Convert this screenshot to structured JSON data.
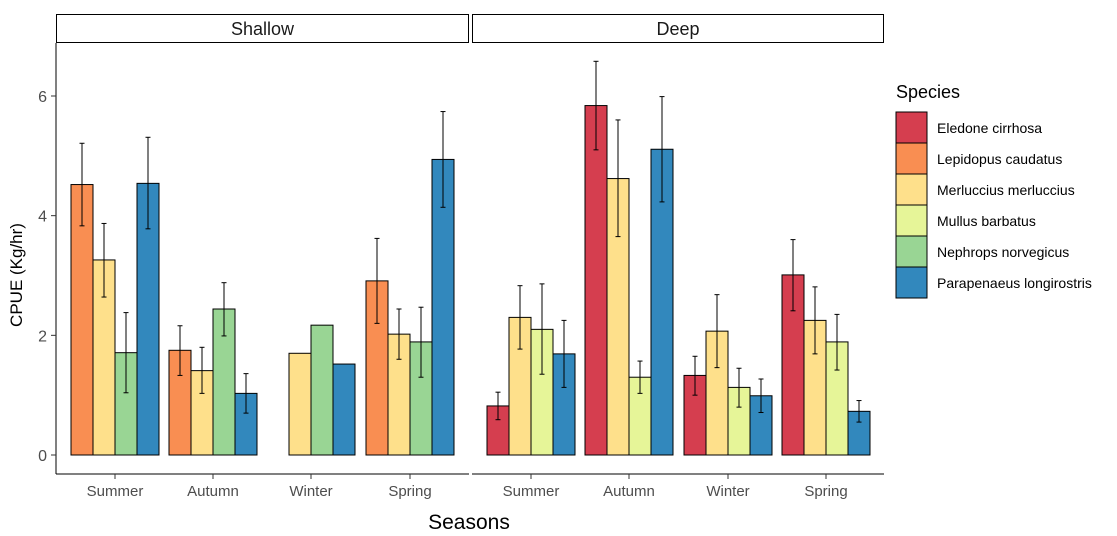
{
  "chart_data": {
    "type": "bar",
    "xlabel": "Seasons",
    "ylabel": "CPUE (Kg/hr)",
    "ylim": [
      0,
      6.9
    ],
    "yticks": [
      0,
      2,
      4,
      6
    ],
    "grid": false,
    "legend": {
      "title": "Species",
      "placement": "right",
      "entries": [
        {
          "name": "Eledone cirrhosa",
          "color": "#d53e4f"
        },
        {
          "name": "Lepidopus caudatus",
          "color": "#f98e52"
        },
        {
          "name": "Merluccius merluccius",
          "color": "#fee08b"
        },
        {
          "name": "Mullus barbatus",
          "color": "#e6f598"
        },
        {
          "name": "Nephrops norvegicus",
          "color": "#99d594"
        },
        {
          "name": "Parapenaeus longirostris",
          "color": "#3288bd"
        }
      ]
    },
    "facets": [
      {
        "label": "Shallow",
        "categories": [
          "Summer",
          "Autumn",
          "Winter",
          "Spring"
        ],
        "groups": [
          {
            "category": "Summer",
            "bars": [
              {
                "species": "Lepidopus caudatus",
                "value": 4.52,
                "err": [
                  3.83,
                  5.21
                ]
              },
              {
                "species": "Merluccius merluccius",
                "value": 3.26,
                "err": [
                  2.64,
                  3.87
                ]
              },
              {
                "species": "Nephrops norvegicus",
                "value": 1.71,
                "err": [
                  1.04,
                  2.38
                ]
              },
              {
                "species": "Parapenaeus longirostris",
                "value": 4.54,
                "err": [
                  3.78,
                  5.31
                ]
              }
            ]
          },
          {
            "category": "Autumn",
            "bars": [
              {
                "species": "Lepidopus caudatus",
                "value": 1.75,
                "err": [
                  1.33,
                  2.16
                ]
              },
              {
                "species": "Merluccius merluccius",
                "value": 1.41,
                "err": [
                  1.03,
                  1.8
                ]
              },
              {
                "species": "Nephrops norvegicus",
                "value": 2.44,
                "err": [
                  1.99,
                  2.88
                ]
              },
              {
                "species": "Parapenaeus longirostris",
                "value": 1.03,
                "err": [
                  0.7,
                  1.36
                ]
              }
            ]
          },
          {
            "category": "Winter",
            "bars": [
              {
                "species": "Lepidopus caudatus",
                "value": 0.0,
                "err": null
              },
              {
                "species": "Merluccius merluccius",
                "value": 1.7,
                "err": null
              },
              {
                "species": "Nephrops norvegicus",
                "value": 2.17,
                "err": null
              },
              {
                "species": "Parapenaeus longirostris",
                "value": 1.52,
                "err": null
              }
            ]
          },
          {
            "category": "Spring",
            "bars": [
              {
                "species": "Lepidopus caudatus",
                "value": 2.91,
                "err": [
                  2.2,
                  3.62
                ]
              },
              {
                "species": "Merluccius merluccius",
                "value": 2.02,
                "err": [
                  1.6,
                  2.44
                ]
              },
              {
                "species": "Nephrops norvegicus",
                "value": 1.89,
                "err": [
                  1.3,
                  2.47
                ]
              },
              {
                "species": "Parapenaeus longirostris",
                "value": 4.94,
                "err": [
                  4.14,
                  5.74
                ]
              }
            ]
          }
        ]
      },
      {
        "label": "Deep",
        "categories": [
          "Summer",
          "Autumn",
          "Winter",
          "Spring"
        ],
        "groups": [
          {
            "category": "Summer",
            "bars": [
              {
                "species": "Eledone cirrhosa",
                "value": 0.82,
                "err": [
                  0.59,
                  1.05
                ]
              },
              {
                "species": "Merluccius merluccius",
                "value": 2.3,
                "err": [
                  1.77,
                  2.83
                ]
              },
              {
                "species": "Mullus barbatus",
                "value": 2.1,
                "err": [
                  1.35,
                  2.86
                ]
              },
              {
                "species": "Parapenaeus longirostris",
                "value": 1.69,
                "err": [
                  1.13,
                  2.25
                ]
              }
            ]
          },
          {
            "category": "Autumn",
            "bars": [
              {
                "species": "Eledone cirrhosa",
                "value": 5.84,
                "err": [
                  5.1,
                  6.58
                ]
              },
              {
                "species": "Merluccius merluccius",
                "value": 4.62,
                "err": [
                  3.65,
                  5.6
                ]
              },
              {
                "species": "Mullus barbatus",
                "value": 1.3,
                "err": [
                  1.03,
                  1.57
                ]
              },
              {
                "species": "Parapenaeus longirostris",
                "value": 5.11,
                "err": [
                  4.23,
                  5.99
                ]
              }
            ]
          },
          {
            "category": "Winter",
            "bars": [
              {
                "species": "Eledone cirrhosa",
                "value": 1.33,
                "err": [
                  1.0,
                  1.65
                ]
              },
              {
                "species": "Merluccius merluccius",
                "value": 2.07,
                "err": [
                  1.46,
                  2.68
                ]
              },
              {
                "species": "Mullus barbatus",
                "value": 1.13,
                "err": [
                  0.8,
                  1.45
                ]
              },
              {
                "species": "Parapenaeus longirostris",
                "value": 0.99,
                "err": [
                  0.71,
                  1.27
                ]
              }
            ]
          },
          {
            "category": "Spring",
            "bars": [
              {
                "species": "Eledone cirrhosa",
                "value": 3.01,
                "err": [
                  2.41,
                  3.6
                ]
              },
              {
                "species": "Merluccius merluccius",
                "value": 2.25,
                "err": [
                  1.69,
                  2.81
                ]
              },
              {
                "species": "Mullus barbatus",
                "value": 1.89,
                "err": [
                  1.42,
                  2.35
                ]
              },
              {
                "species": "Parapenaeus longirostris",
                "value": 0.73,
                "err": [
                  0.55,
                  0.91
                ]
              }
            ]
          }
        ]
      }
    ]
  }
}
